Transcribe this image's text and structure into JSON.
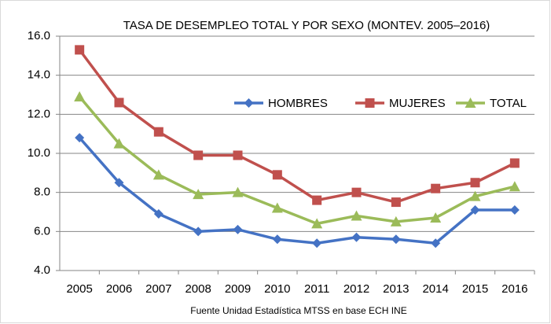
{
  "chart_data": {
    "type": "line",
    "title": "TASA DE DESEMPLEO TOTAL Y POR SEXO (MONTEV. 2005–2016)",
    "source": "Fuente Unidad Estadística MTSS en base ECH INE",
    "categories": [
      "2005",
      "2006",
      "2007",
      "2008",
      "2009",
      "2010",
      "2011",
      "2012",
      "2013",
      "2014",
      "2015",
      "2016"
    ],
    "series": [
      {
        "name": "HOMBRES",
        "color": "#4472c4",
        "marker": "diamond",
        "values": [
          10.8,
          8.5,
          6.9,
          6.0,
          6.1,
          5.6,
          5.4,
          5.7,
          5.6,
          5.4,
          7.1,
          7.1
        ]
      },
      {
        "name": "MUJERES",
        "color": "#c0504d",
        "marker": "square",
        "values": [
          15.3,
          12.6,
          11.1,
          9.9,
          9.9,
          8.9,
          7.6,
          8.0,
          7.5,
          8.2,
          8.5,
          9.5
        ]
      },
      {
        "name": "TOTAL",
        "color": "#9bbb59",
        "marker": "triangle",
        "values": [
          12.9,
          10.5,
          8.9,
          7.9,
          8.0,
          7.2,
          6.4,
          6.8,
          6.5,
          6.7,
          7.8,
          8.3
        ]
      }
    ],
    "ylim": [
      4,
      16
    ],
    "yticks": [
      {
        "value": 4,
        "label": "4.0"
      },
      {
        "value": 6,
        "label": "6.0"
      },
      {
        "value": 8,
        "label": "8.0"
      },
      {
        "value": 10,
        "label": "10.0"
      },
      {
        "value": 12,
        "label": "12.0"
      },
      {
        "value": 14,
        "label": "14.0"
      },
      {
        "value": 16,
        "label": "16.0"
      }
    ],
    "grid": true,
    "legend": "top-right"
  }
}
